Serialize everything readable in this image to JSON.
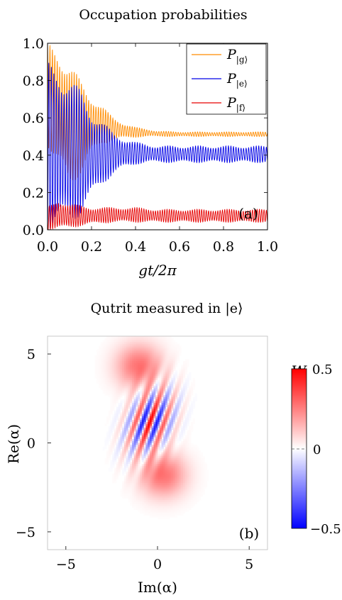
{
  "chart_data": [
    {
      "type": "line",
      "title": "Occupation probabilities",
      "xlabel": "gt/2π",
      "ylabel": "",
      "xlim": [
        0.0,
        1.0
      ],
      "ylim": [
        0.0,
        1.0
      ],
      "xticks": [
        "0.0",
        "0.2",
        "0.4",
        "0.6",
        "0.8",
        "1.0"
      ],
      "yticks": [
        "0.0",
        "0.2",
        "0.4",
        "0.6",
        "0.8",
        "1.0"
      ],
      "panel_label": "(a)",
      "legend": {
        "position": "top-right"
      },
      "series": [
        {
          "name": "P|g⟩",
          "label_main": "P",
          "label_sub": "|g⟩",
          "color": "#ff8c00",
          "envelope": {
            "t": [
              0.0,
              0.05,
              0.1,
              0.15,
              0.2,
              0.25,
              0.3,
              0.35,
              0.4,
              0.45,
              0.5,
              0.6,
              0.7,
              0.8,
              0.9,
              1.0
            ],
            "upper": [
              1.0,
              0.97,
              0.9,
              0.8,
              0.72,
              0.66,
              0.6,
              0.57,
              0.55,
              0.54,
              0.53,
              0.525,
              0.525,
              0.525,
              0.525,
              0.525
            ],
            "lower": [
              0.45,
              0.32,
              0.22,
              0.3,
              0.4,
              0.46,
              0.48,
              0.49,
              0.495,
              0.5,
              0.5,
              0.5,
              0.5,
              0.5,
              0.5,
              0.5
            ]
          }
        },
        {
          "name": "P|e⟩",
          "label_main": "P",
          "label_sub": "|e⟩",
          "color": "#0000e6",
          "envelope": {
            "t": [
              0.0,
              0.05,
              0.1,
              0.15,
              0.2,
              0.25,
              0.3,
              0.35,
              0.4,
              0.45,
              0.5,
              0.6,
              0.7,
              0.8,
              0.9,
              1.0
            ],
            "upper": [
              0.9,
              0.88,
              0.82,
              0.75,
              0.65,
              0.58,
              0.52,
              0.49,
              0.47,
              0.46,
              0.45,
              0.45,
              0.45,
              0.45,
              0.45,
              0.45
            ],
            "lower": [
              0.0,
              0.0,
              0.02,
              0.08,
              0.16,
              0.24,
              0.3,
              0.33,
              0.35,
              0.36,
              0.36,
              0.36,
              0.36,
              0.36,
              0.36,
              0.36
            ]
          }
        },
        {
          "name": "P|f⟩",
          "label_main": "P",
          "label_sub": "|f⟩",
          "color": "#e60000",
          "envelope": {
            "t": [
              0.0,
              0.05,
              0.1,
              0.15,
              0.2,
              0.3,
              0.4,
              0.5,
              0.6,
              0.7,
              0.8,
              0.9,
              1.0
            ],
            "upper": [
              0.12,
              0.16,
              0.14,
              0.13,
              0.12,
              0.12,
              0.12,
              0.11,
              0.11,
              0.11,
              0.11,
              0.11,
              0.11
            ],
            "lower": [
              0.0,
              0.0,
              0.01,
              0.02,
              0.03,
              0.04,
              0.04,
              0.04,
              0.04,
              0.04,
              0.04,
              0.04,
              0.04
            ]
          }
        }
      ]
    },
    {
      "type": "heatmap",
      "title": "Qutrit measured in |e⟩",
      "xlabel": "Im(α)",
      "ylabel": "Re(α)",
      "xlim": [
        -6,
        6
      ],
      "ylim": [
        -6,
        6
      ],
      "xticks": [
        "−5",
        "0",
        "5"
      ],
      "yticks": [
        "−5",
        "0",
        "5"
      ],
      "panel_label": "(b)",
      "colorbar": {
        "label": "W",
        "min": -0.5,
        "max": 0.5,
        "ticks": [
          "−0.5",
          "0",
          "0.5"
        ],
        "colors": [
          "#0000ff",
          "#ffffff",
          "#ff0000"
        ]
      },
      "features": [
        {
          "kind": "gaussian",
          "center": [
            -1.0,
            4.3
          ],
          "width": 1.25,
          "amplitude": 0.28
        },
        {
          "kind": "gaussian",
          "center": [
            0.3,
            -1.8
          ],
          "width": 1.25,
          "amplitude": 0.28
        },
        {
          "kind": "fringes",
          "center": [
            -0.4,
            1.2
          ],
          "amplitude": 0.5,
          "extent": [
            1.1,
            1.9
          ],
          "period": 0.75,
          "tilt_deg": 20
        }
      ]
    }
  ]
}
